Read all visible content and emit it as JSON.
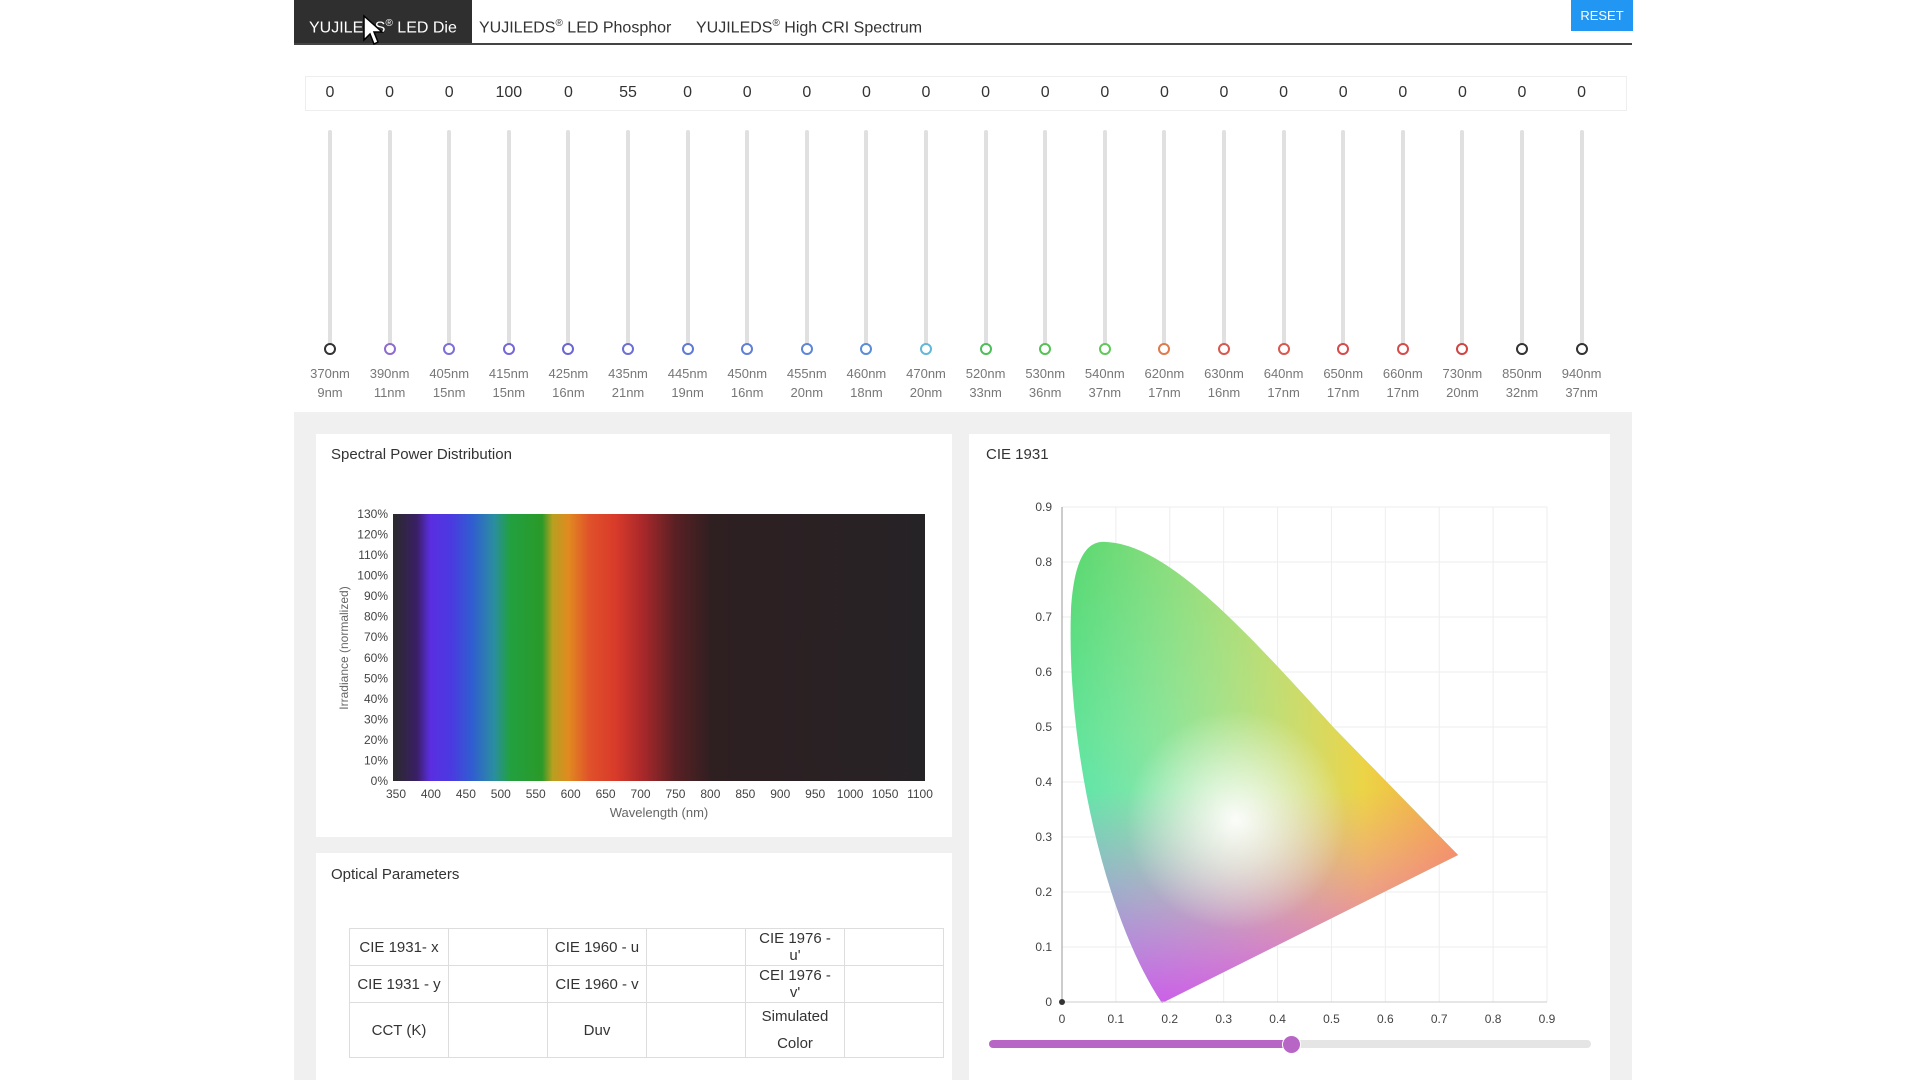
{
  "tabs": [
    {
      "label": "YUJILEDS",
      "sup": "®",
      "suffix": " LED Die",
      "active": true
    },
    {
      "label": "YUJILEDS",
      "sup": "®",
      "suffix": " LED Phosphor",
      "active": false
    },
    {
      "label": "YUJILEDS",
      "sup": "®",
      "suffix": " High CRI Spectrum",
      "active": false
    }
  ],
  "reset_label": "RESET",
  "channels": [
    {
      "value": "0",
      "wl": "370nm",
      "fwhm": "9nm",
      "color": "#333333"
    },
    {
      "value": "0",
      "wl": "390nm",
      "fwhm": "11nm",
      "color": "#8e6bd0"
    },
    {
      "value": "0",
      "wl": "405nm",
      "fwhm": "15nm",
      "color": "#7b6fd8"
    },
    {
      "value": "100",
      "wl": "415nm",
      "fwhm": "15nm",
      "color": "#7467d8"
    },
    {
      "value": "0",
      "wl": "425nm",
      "fwhm": "16nm",
      "color": "#6a66d4"
    },
    {
      "value": "55",
      "wl": "435nm",
      "fwhm": "21nm",
      "color": "#6b6fd6"
    },
    {
      "value": "0",
      "wl": "445nm",
      "fwhm": "19nm",
      "color": "#5f79d8"
    },
    {
      "value": "0",
      "wl": "450nm",
      "fwhm": "16nm",
      "color": "#5f7fd8"
    },
    {
      "value": "0",
      "wl": "455nm",
      "fwhm": "20nm",
      "color": "#5d86d8"
    },
    {
      "value": "0",
      "wl": "460nm",
      "fwhm": "18nm",
      "color": "#5a8cd8"
    },
    {
      "value": "0",
      "wl": "470nm",
      "fwhm": "20nm",
      "color": "#62b8d8"
    },
    {
      "value": "0",
      "wl": "520nm",
      "fwhm": "33nm",
      "color": "#4cbf5a"
    },
    {
      "value": "0",
      "wl": "530nm",
      "fwhm": "36nm",
      "color": "#54c254"
    },
    {
      "value": "0",
      "wl": "540nm",
      "fwhm": "37nm",
      "color": "#5ec95a"
    },
    {
      "value": "0",
      "wl": "620nm",
      "fwhm": "17nm",
      "color": "#e07a4a"
    },
    {
      "value": "0",
      "wl": "630nm",
      "fwhm": "16nm",
      "color": "#d9574c"
    },
    {
      "value": "0",
      "wl": "640nm",
      "fwhm": "17nm",
      "color": "#d9574c"
    },
    {
      "value": "0",
      "wl": "650nm",
      "fwhm": "17nm",
      "color": "#d64a4a"
    },
    {
      "value": "0",
      "wl": "660nm",
      "fwhm": "17nm",
      "color": "#d64a4a"
    },
    {
      "value": "0",
      "wl": "730nm",
      "fwhm": "20nm",
      "color": "#d04444"
    },
    {
      "value": "0",
      "wl": "850nm",
      "fwhm": "32nm",
      "color": "#333333"
    },
    {
      "value": "0",
      "wl": "940nm",
      "fwhm": "37nm",
      "color": "#333333"
    }
  ],
  "spd": {
    "title": "Spectral Power Distribution",
    "ylabel": "Irradiance (normalized)",
    "xlabel": "Wavelength (nm)",
    "yticks": [
      "130%",
      "120%",
      "110%",
      "100%",
      "90%",
      "80%",
      "70%",
      "60%",
      "50%",
      "40%",
      "30%",
      "20%",
      "10%",
      "0%"
    ],
    "xticks": [
      "350",
      "400",
      "450",
      "500",
      "550",
      "600",
      "650",
      "700",
      "750",
      "800",
      "850",
      "900",
      "950",
      "1000",
      "1050",
      "1100"
    ]
  },
  "cie": {
    "title": "CIE 1931",
    "yticks": [
      "0.9",
      "0.8",
      "0.7",
      "0.6",
      "0.5",
      "0.4",
      "0.3",
      "0.2",
      "0.1",
      "0"
    ],
    "xticks": [
      "0",
      "0.1",
      "0.2",
      "0.3",
      "0.4",
      "0.5",
      "0.6",
      "0.7",
      "0.8",
      "0.9"
    ],
    "slider_value": 0.5
  },
  "optical": {
    "title": "Optical Parameters",
    "rows": [
      [
        "CIE 1931- x",
        "",
        "CIE 1960 - u",
        "",
        "CIE 1976 - u'",
        ""
      ],
      [
        "CIE 1931 - y",
        "",
        "CIE 1960 - v",
        "",
        "CEI 1976 - v'",
        ""
      ],
      [
        "CCT (K)",
        "",
        "Duv",
        "",
        "Simulated Color",
        ""
      ]
    ]
  }
}
